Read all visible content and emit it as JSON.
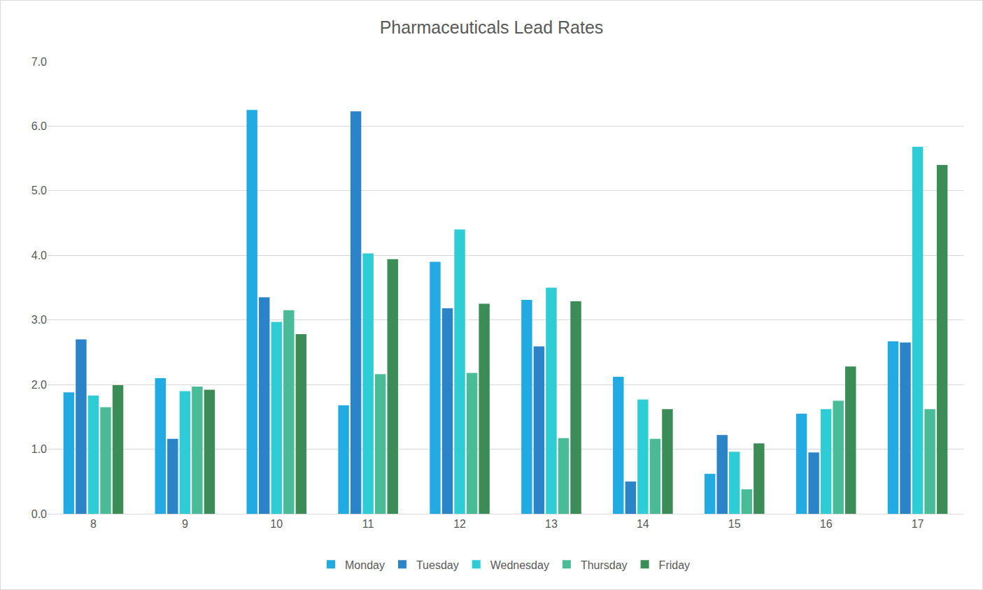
{
  "chart_data": {
    "type": "bar",
    "title": "Pharmaceuticals Lead Rates",
    "categories": [
      "8",
      "9",
      "10",
      "11",
      "12",
      "13",
      "14",
      "15",
      "16",
      "17"
    ],
    "series": [
      {
        "name": "Monday",
        "color": "#22ABE3",
        "values": [
          1.88,
          2.1,
          6.25,
          1.68,
          3.9,
          3.31,
          2.12,
          0.62,
          1.55,
          2.67
        ]
      },
      {
        "name": "Tuesday",
        "color": "#2B84C8",
        "values": [
          2.7,
          1.16,
          3.35,
          6.23,
          3.18,
          2.59,
          0.5,
          1.22,
          0.95,
          2.65
        ]
      },
      {
        "name": "Wednesday",
        "color": "#2ECDD6",
        "values": [
          1.83,
          1.9,
          2.97,
          4.03,
          4.4,
          3.5,
          1.77,
          0.96,
          1.62,
          5.68
        ]
      },
      {
        "name": "Thursday",
        "color": "#49BC97",
        "values": [
          1.65,
          1.97,
          3.15,
          2.16,
          2.18,
          1.17,
          1.16,
          0.38,
          1.75,
          1.62
        ]
      },
      {
        "name": "Friday",
        "color": "#3B8C57",
        "values": [
          1.99,
          1.92,
          2.78,
          3.94,
          3.25,
          3.29,
          1.62,
          1.09,
          2.28,
          5.4
        ]
      }
    ],
    "ylim": [
      0,
      7
    ],
    "yticks": [
      {
        "value": 0,
        "label": "0.0"
      },
      {
        "value": 1,
        "label": "1.0"
      },
      {
        "value": 2,
        "label": "2.0"
      },
      {
        "value": 3,
        "label": "3.0"
      },
      {
        "value": 4,
        "label": "4.0"
      },
      {
        "value": 5,
        "label": "5.0"
      },
      {
        "value": 6,
        "label": "6.0"
      },
      {
        "value": 7,
        "label": "7.0"
      }
    ],
    "grid": true,
    "legend": "bottom"
  }
}
